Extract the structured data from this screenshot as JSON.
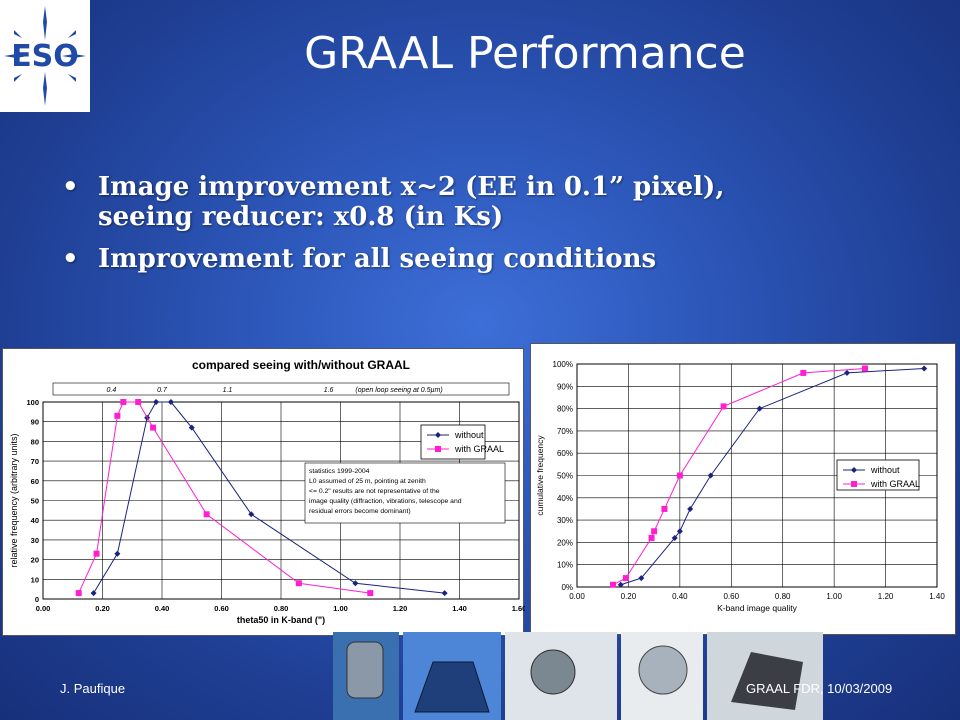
{
  "logo": {
    "text": "ESO"
  },
  "title": "GRAAL Performance",
  "bullets": [
    {
      "line1": "Image improvement x~2 (EE in 0.1” pixel),",
      "line2": "seeing reducer: x0.8 (in Ks)"
    },
    {
      "line1": "Improvement for all seeing conditions",
      "line2": ""
    }
  ],
  "footer": {
    "author": "J. Paufique",
    "event": "GRAAL FDR, 10/03/2009"
  },
  "chart_data": [
    {
      "type": "line",
      "title": "compared seeing with/without GRAAL",
      "xlabel": "theta50 in K-band (\")",
      "ylabel": "relative frequency (arbitrary units)",
      "xlim": [
        0,
        1.6
      ],
      "ylim": [
        0,
        100
      ],
      "xticks": [
        "0.00",
        "0.20",
        "0.40",
        "0.60",
        "0.80",
        "1.00",
        "1.20",
        "1.40",
        "1.60"
      ],
      "yticks": [
        "0",
        "10",
        "20",
        "30",
        "40",
        "50",
        "60",
        "70",
        "80",
        "90",
        "100"
      ],
      "grid": true,
      "legend": "right",
      "top_axis": {
        "values": [
          0.23,
          0.4,
          0.62,
          0.96
        ],
        "labels": [
          "0.4",
          "0.7",
          "1.1",
          "1.6"
        ],
        "note": "(open loop seeing at 0.5µm)"
      },
      "annotation": [
        "statistics 1999-2004",
        "L0 assumed of 25 m, pointing at zenith",
        "<= 0.2\" results are not representative of the",
        "image quality (diffraction, vibrations, telescope and",
        "residual errors become dominant)"
      ],
      "series": [
        {
          "name": "without",
          "color": "#1a237e",
          "marker": "diamond",
          "x": [
            0.17,
            0.25,
            0.35,
            0.38,
            0.43,
            0.5,
            0.7,
            1.05,
            1.35
          ],
          "y": [
            3,
            23,
            92,
            100,
            100,
            87,
            43,
            8,
            3
          ]
        },
        {
          "name": "with GRAAL",
          "color": "#ff1fd0",
          "marker": "square",
          "x": [
            0.12,
            0.18,
            0.25,
            0.27,
            0.32,
            0.37,
            0.55,
            0.86,
            1.1
          ],
          "y": [
            3,
            23,
            93,
            100,
            100,
            87,
            43,
            8,
            3
          ]
        }
      ]
    },
    {
      "type": "line",
      "title": "",
      "xlabel": "K-band image quality",
      "ylabel": "cumulative frequency",
      "xlim": [
        0,
        1.4
      ],
      "ylim": [
        0,
        100
      ],
      "xticks": [
        "0.00",
        "0.20",
        "0.40",
        "0.60",
        "0.80",
        "1.00",
        "1.20",
        "1.40"
      ],
      "yticks": [
        "0%",
        "10%",
        "20%",
        "30%",
        "40%",
        "50%",
        "60%",
        "70%",
        "80%",
        "90%",
        "100%"
      ],
      "grid": true,
      "legend": "right",
      "series": [
        {
          "name": "without",
          "color": "#1a237e",
          "marker": "diamond",
          "x": [
            0.17,
            0.25,
            0.38,
            0.4,
            0.44,
            0.52,
            0.71,
            1.05,
            1.35
          ],
          "y": [
            1,
            4,
            22,
            25,
            35,
            50,
            80,
            96,
            98
          ]
        },
        {
          "name": "with GRAAL",
          "color": "#ff1fd0",
          "marker": "square",
          "x": [
            0.14,
            0.19,
            0.29,
            0.3,
            0.34,
            0.4,
            0.57,
            0.88,
            1.12
          ],
          "y": [
            1,
            4,
            22,
            25,
            35,
            50,
            81,
            96,
            98
          ]
        }
      ]
    }
  ]
}
